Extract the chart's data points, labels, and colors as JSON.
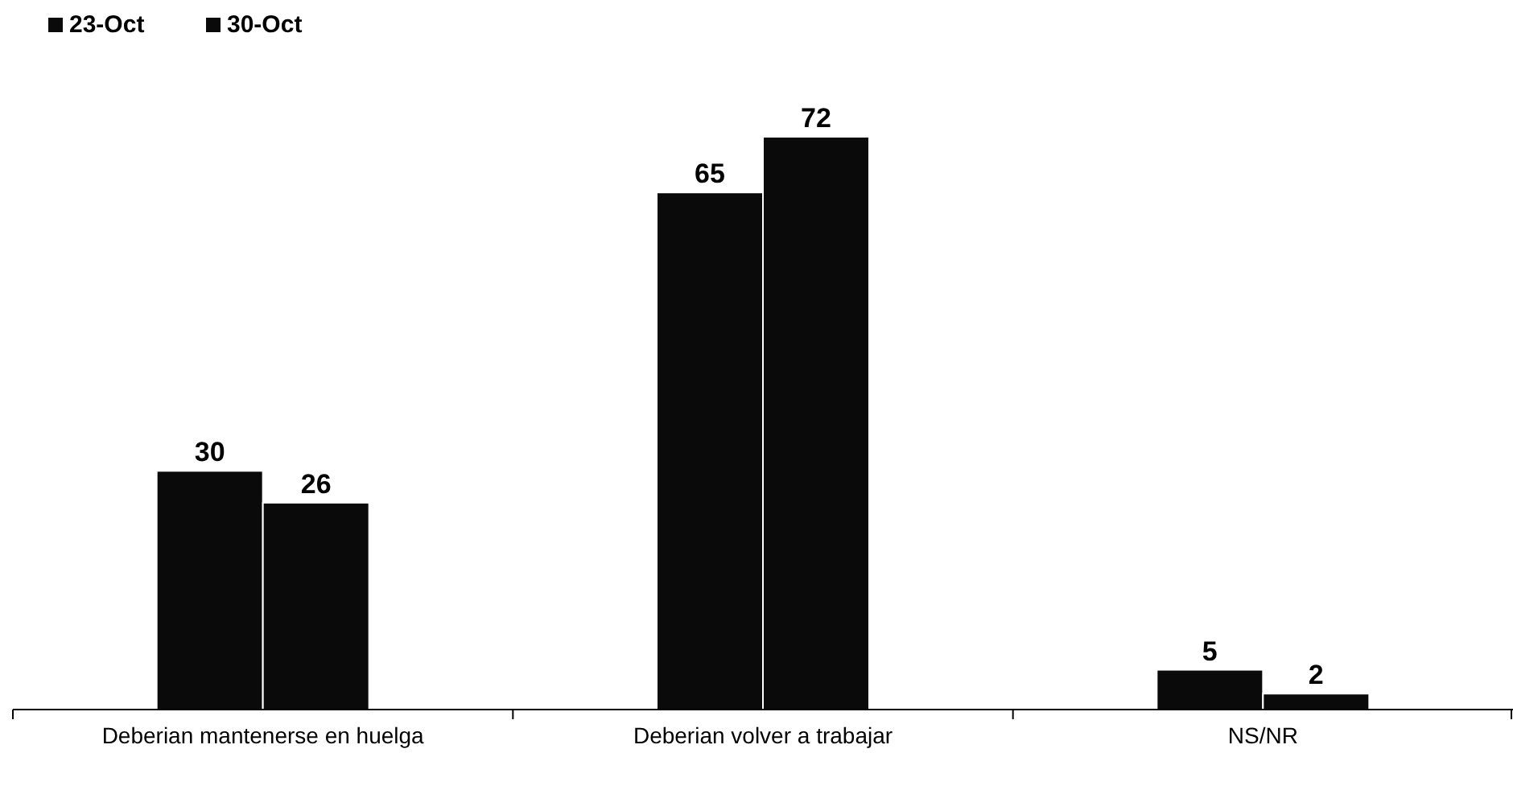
{
  "chart_data": {
    "type": "bar",
    "categories": [
      "Deberian mantenerse en huelga",
      "Deberian volver a trabajar",
      "NS/NR"
    ],
    "series": [
      {
        "name": "23-Oct",
        "color": "#0a0a0a",
        "values": [
          30,
          65,
          5
        ]
      },
      {
        "name": "30-Oct",
        "color": "#0a0a0a",
        "values": [
          26,
          72,
          2
        ]
      }
    ],
    "data_labels": true,
    "legend": "top left",
    "grid": false
  }
}
